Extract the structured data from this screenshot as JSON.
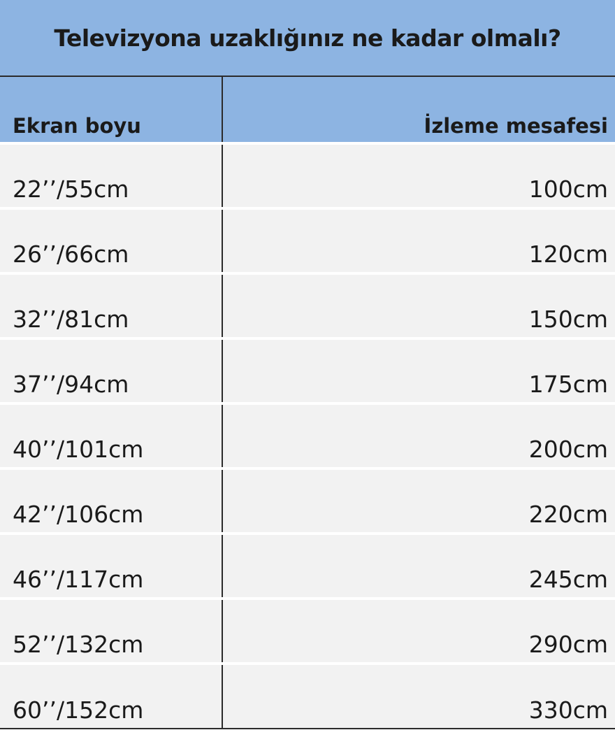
{
  "title": "Televizyona uzaklığınız ne kadar olmalı?",
  "colors": {
    "header_bg": "#8db4e2",
    "row_bg": "#f2f2f2",
    "border": "#2b2b2b"
  },
  "table": {
    "headers": [
      "Ekran boyu",
      "İzleme mesafesi"
    ],
    "rows": [
      [
        "22’’/55cm",
        "100cm"
      ],
      [
        "26’’/66cm",
        "120cm"
      ],
      [
        "32’’/81cm",
        "150cm"
      ],
      [
        "37’’/94cm",
        "175cm"
      ],
      [
        "40’’/101cm",
        "200cm"
      ],
      [
        "42’’/106cm",
        "220cm"
      ],
      [
        "46’’/117cm",
        "245cm"
      ],
      [
        "52’’/132cm",
        "290cm"
      ],
      [
        "60’’/152cm",
        "330cm"
      ]
    ]
  }
}
